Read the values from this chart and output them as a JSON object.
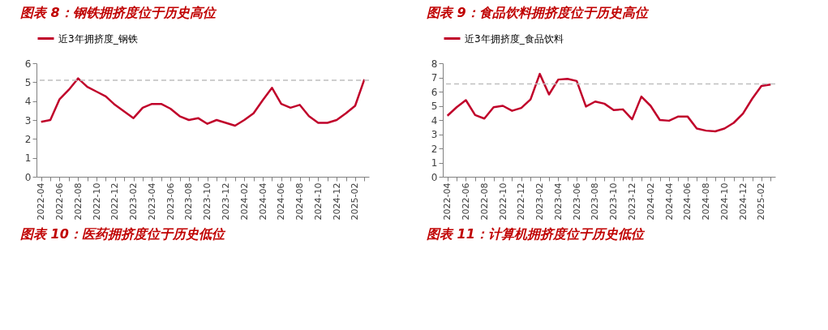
{
  "chart_data": [
    {
      "type": "line",
      "title": "图表 8：钢铁拥挤度位于历史高位",
      "categories": [
        "2022-04",
        null,
        "2022-06",
        null,
        "2022-08",
        null,
        "2022-10",
        null,
        "2022-12",
        null,
        "2023-02",
        null,
        "2023-04",
        null,
        "2023-06",
        null,
        "2023-08",
        null,
        "2023-10",
        null,
        "2023-12",
        null,
        "2024-02",
        null,
        "2024-04",
        null,
        "2024-06",
        null,
        "2024-08",
        null,
        "2024-10",
        null,
        "2024-12",
        null,
        "2025-02",
        null
      ],
      "series": [
        {
          "name": "近3年拥挤度_钢铁",
          "color": "#c0002a",
          "values": [
            2.9,
            3.0,
            4.1,
            4.6,
            5.2,
            4.75,
            4.5,
            4.25,
            3.8,
            3.45,
            3.1,
            3.65,
            3.85,
            3.85,
            3.6,
            3.2,
            3.0,
            3.1,
            2.8,
            3.0,
            2.85,
            2.7,
            3.0,
            3.35,
            4.05,
            4.7,
            3.85,
            3.65,
            3.8,
            3.2,
            2.85,
            2.85,
            3.0,
            3.35,
            3.75,
            5.15
          ]
        }
      ],
      "ylim": [
        0,
        6
      ],
      "yticks": [
        0,
        1,
        2,
        3,
        4,
        5,
        6
      ],
      "ref_lines": [
        {
          "axis": "y",
          "value": 5.1,
          "color": "#bfbfbf",
          "line_style": "dashed"
        }
      ],
      "grid": false,
      "legend": "top",
      "marker": "none",
      "line_style": "solid",
      "annotations": [
        "图表 10：医药拥挤度位于历史低位"
      ]
    },
    {
      "type": "line",
      "title": "图表 9：食品饮料拥挤度位于历史高位",
      "categories": [
        "2022-04",
        null,
        "2022-06",
        null,
        "2022-08",
        null,
        "2022-10",
        null,
        "2022-12",
        null,
        "2023-02",
        null,
        "2023-04",
        null,
        "2023-06",
        null,
        "2023-08",
        null,
        "2023-10",
        null,
        "2023-12",
        null,
        "2024-02",
        null,
        "2024-04",
        null,
        "2024-06",
        null,
        "2024-08",
        null,
        "2024-10",
        null,
        "2024-12",
        null,
        "2025-02",
        null
      ],
      "series": [
        {
          "name": "近3年拥挤度_食品饮料",
          "color": "#c0002a",
          "values": [
            4.3,
            4.9,
            5.4,
            4.35,
            4.1,
            4.9,
            5.0,
            4.65,
            4.85,
            5.45,
            7.25,
            5.8,
            6.85,
            6.9,
            6.75,
            4.95,
            5.3,
            5.15,
            4.7,
            4.75,
            4.05,
            5.65,
            5.0,
            4.0,
            3.95,
            4.25,
            4.25,
            3.4,
            3.25,
            3.2,
            3.4,
            3.8,
            4.45,
            5.5,
            6.4,
            6.5
          ]
        }
      ],
      "ylim": [
        0,
        8
      ],
      "yticks": [
        0,
        1,
        2,
        3,
        4,
        5,
        6,
        7,
        8
      ],
      "ref_lines": [
        {
          "axis": "y",
          "value": 6.55,
          "color": "#bfbfbf",
          "line_style": "dashed"
        }
      ],
      "grid": false,
      "legend": "top",
      "marker": "none",
      "line_style": "solid",
      "annotations": [
        "图表 11：计算机拥挤度位于历史低位"
      ]
    }
  ]
}
